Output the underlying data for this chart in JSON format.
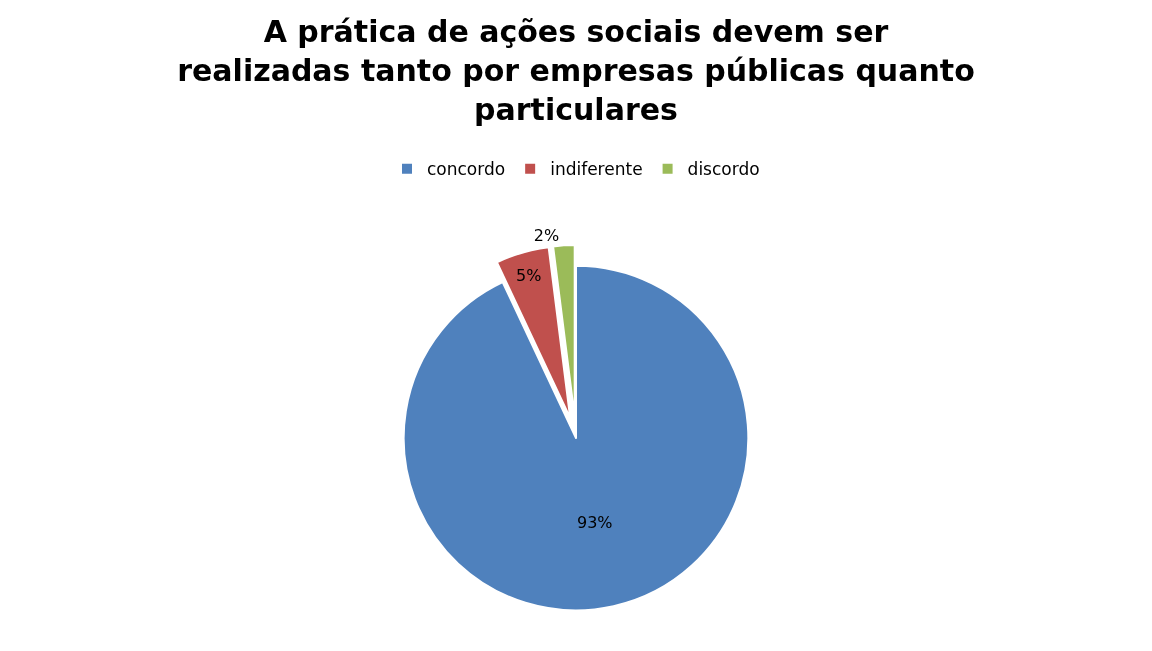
{
  "chart_data": {
    "type": "pie",
    "title": "A prática de ações sociais devem ser\nrealizadas tanto por empresas públicas quanto\nparticulares",
    "categories": [
      "concordo",
      "indiferente",
      "discordo"
    ],
    "values": [
      93,
      5,
      2
    ],
    "value_labels": [
      "93%",
      "5%",
      "2%"
    ],
    "colors": [
      "#4f81bd",
      "#c0504d",
      "#9bbb59"
    ],
    "legend": "top"
  }
}
